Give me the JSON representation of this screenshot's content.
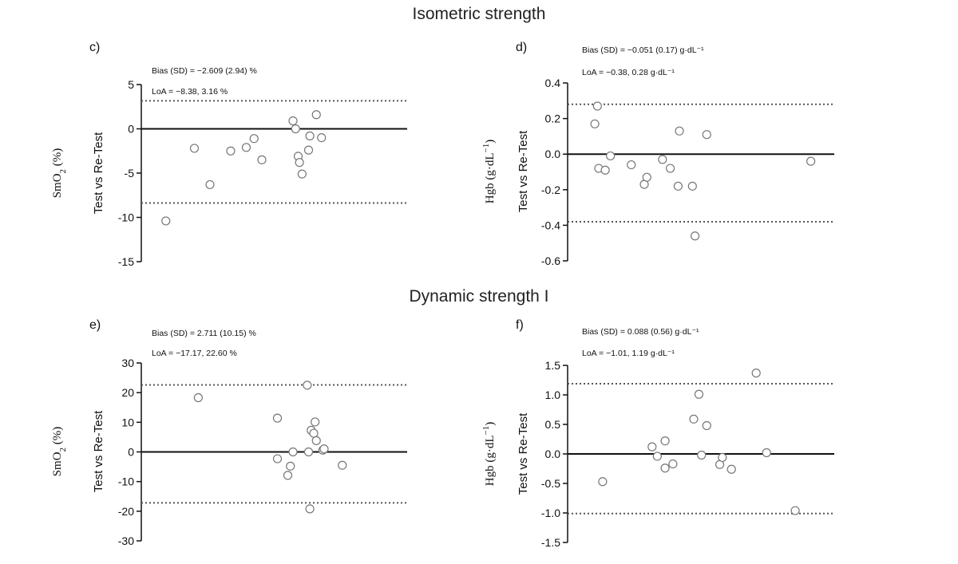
{
  "sections": [
    {
      "title": "Isometric strength"
    },
    {
      "title": "Dynamic strength I"
    }
  ],
  "chart_data": [
    {
      "type": "scatter",
      "panel_label": "c)",
      "ylabel_measure": "SmO",
      "ylabel_sub": "2",
      "ylabel_unit": " (%)",
      "ylabel_sup": "",
      "ylabel_test": "Test vs Re-Test",
      "annotations": [
        "Bias (SD) = −2.609 (2.94) %",
        "LoA = −8.38, 3.16 %"
      ],
      "bias": 0,
      "loa_upper": 3.16,
      "loa_lower": -8.38,
      "ylim": [
        -15,
        5
      ],
      "yticks": [
        5,
        0,
        -5,
        -10,
        -15
      ],
      "ytick_labels": [
        "5",
        "0",
        "-5",
        "-10",
        "-15"
      ],
      "xlim": [
        0,
        100
      ],
      "points": [
        {
          "x": 7,
          "y": -10.4
        },
        {
          "x": 18,
          "y": -2.2
        },
        {
          "x": 24,
          "y": -6.3
        },
        {
          "x": 32,
          "y": -2.5
        },
        {
          "x": 38,
          "y": -2.1
        },
        {
          "x": 41,
          "y": -1.1
        },
        {
          "x": 44,
          "y": -3.5
        },
        {
          "x": 56,
          "y": 0.9
        },
        {
          "x": 57,
          "y": 0.0
        },
        {
          "x": 58,
          "y": -3.1
        },
        {
          "x": 58.5,
          "y": -3.8
        },
        {
          "x": 59.5,
          "y": -5.1
        },
        {
          "x": 62,
          "y": -2.4
        },
        {
          "x": 62.5,
          "y": -0.8
        },
        {
          "x": 65,
          "y": 1.6
        },
        {
          "x": 67,
          "y": -1.0
        }
      ]
    },
    {
      "type": "scatter",
      "panel_label": "d)",
      "ylabel_measure": "Hgb",
      "ylabel_sub": "",
      "ylabel_unit": " (g·dL",
      "ylabel_sup": "−1",
      "ylabel_close": ")",
      "ylabel_test": "Test vs Re-Test",
      "annotations": [
        "Bias (SD) = −0.051 (0.17) g·dL⁻¹",
        "LoA = −0.38, 0.28 g·dL⁻¹"
      ],
      "bias": 0,
      "loa_upper": 0.28,
      "loa_lower": -0.38,
      "ylim": [
        -0.6,
        0.4
      ],
      "yticks": [
        0.4,
        0.2,
        0.0,
        -0.2,
        -0.4,
        -0.6
      ],
      "ytick_labels": [
        "0.4",
        "0.2",
        "0.0",
        "-0.2",
        "-0.4",
        "-0.6"
      ],
      "xlim": [
        0,
        100
      ],
      "points": [
        {
          "x": 8,
          "y": 0.17
        },
        {
          "x": 9,
          "y": 0.27
        },
        {
          "x": 9.5,
          "y": -0.08
        },
        {
          "x": 12,
          "y": -0.09
        },
        {
          "x": 14,
          "y": -0.01
        },
        {
          "x": 22,
          "y": -0.06
        },
        {
          "x": 27,
          "y": -0.17
        },
        {
          "x": 28,
          "y": -0.13
        },
        {
          "x": 34,
          "y": -0.03
        },
        {
          "x": 37,
          "y": -0.08
        },
        {
          "x": 40,
          "y": -0.18
        },
        {
          "x": 40.5,
          "y": 0.13
        },
        {
          "x": 45.5,
          "y": -0.18
        },
        {
          "x": 46.5,
          "y": -0.46
        },
        {
          "x": 51,
          "y": 0.11
        },
        {
          "x": 91,
          "y": -0.04
        }
      ]
    },
    {
      "type": "scatter",
      "panel_label": "e)",
      "ylabel_measure": "SmO",
      "ylabel_sub": "2",
      "ylabel_unit": " (%)",
      "ylabel_sup": "",
      "ylabel_test": "Test vs Re-Test",
      "annotations": [
        "Bias (SD) = 2.711 (10.15) %",
        "LoA = −17.17, 22.60 %"
      ],
      "bias": 0,
      "loa_upper": 22.6,
      "loa_lower": -17.17,
      "ylim": [
        -30,
        30
      ],
      "yticks": [
        30,
        20,
        10,
        0,
        -10,
        -20,
        -30
      ],
      "ytick_labels": [
        "30",
        "20",
        "10",
        "0",
        "-10",
        "-20",
        "-30"
      ],
      "xlim": [
        0,
        100
      ],
      "points": [
        {
          "x": 19.5,
          "y": 18.3
        },
        {
          "x": 50,
          "y": 11.4
        },
        {
          "x": 50,
          "y": -2.3
        },
        {
          "x": 54,
          "y": -7.9
        },
        {
          "x": 55,
          "y": -4.8
        },
        {
          "x": 56,
          "y": 0.0
        },
        {
          "x": 61.5,
          "y": 22.5
        },
        {
          "x": 62,
          "y": 0.0
        },
        {
          "x": 62.5,
          "y": -19.2
        },
        {
          "x": 63,
          "y": 7.3
        },
        {
          "x": 64,
          "y": 6.3
        },
        {
          "x": 64.5,
          "y": 10.1
        },
        {
          "x": 65,
          "y": 3.8
        },
        {
          "x": 67.5,
          "y": 0.6
        },
        {
          "x": 68,
          "y": 1.0
        },
        {
          "x": 75,
          "y": -4.5
        }
      ]
    },
    {
      "type": "scatter",
      "panel_label": "f)",
      "ylabel_measure": "Hgb",
      "ylabel_sub": "",
      "ylabel_unit": " (g·dL",
      "ylabel_sup": "−1",
      "ylabel_close": ")",
      "ylabel_test": "Test vs Re-Test",
      "annotations": [
        "Bias (SD) = 0.088 (0.56) g·dL⁻¹",
        "LoA = −1.01, 1.19 g·dL⁻¹"
      ],
      "bias": 0,
      "loa_upper": 1.19,
      "loa_lower": -1.01,
      "ylim": [
        -1.5,
        1.5
      ],
      "yticks": [
        1.5,
        1.0,
        0.5,
        0.0,
        -0.5,
        -1.0,
        -1.5
      ],
      "ytick_labels": [
        "1.5",
        "1.0",
        "0.5",
        "0.0",
        "-0.5",
        "-1.0",
        "-1.5"
      ],
      "xlim": [
        0,
        100
      ],
      "points": [
        {
          "x": 11,
          "y": -0.47
        },
        {
          "x": 30,
          "y": 0.12
        },
        {
          "x": 32,
          "y": -0.04
        },
        {
          "x": 35,
          "y": 0.22
        },
        {
          "x": 35,
          "y": -0.24
        },
        {
          "x": 38,
          "y": -0.17
        },
        {
          "x": 46,
          "y": 0.59
        },
        {
          "x": 48,
          "y": 1.01
        },
        {
          "x": 49,
          "y": -0.02
        },
        {
          "x": 51,
          "y": 0.48
        },
        {
          "x": 56,
          "y": -0.18
        },
        {
          "x": 57,
          "y": -0.06
        },
        {
          "x": 60.5,
          "y": -0.26
        },
        {
          "x": 70,
          "y": 1.37
        },
        {
          "x": 74,
          "y": 0.02
        },
        {
          "x": 85,
          "y": -0.96
        }
      ]
    }
  ]
}
